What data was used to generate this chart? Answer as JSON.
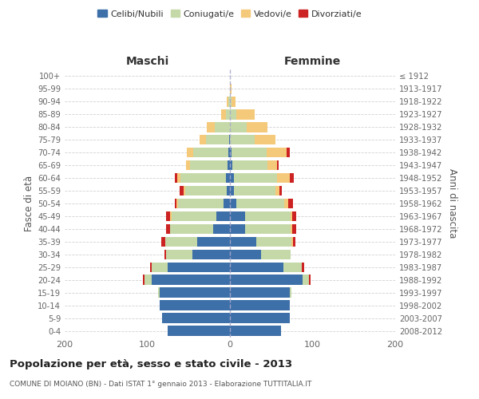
{
  "age_groups": [
    "0-4",
    "5-9",
    "10-14",
    "15-19",
    "20-24",
    "25-29",
    "30-34",
    "35-39",
    "40-44",
    "45-49",
    "50-54",
    "55-59",
    "60-64",
    "65-69",
    "70-74",
    "75-79",
    "80-84",
    "85-89",
    "90-94",
    "95-99",
    "100+"
  ],
  "birth_years": [
    "2008-2012",
    "2003-2007",
    "1998-2002",
    "1993-1997",
    "1988-1992",
    "1983-1987",
    "1978-1982",
    "1973-1977",
    "1968-1972",
    "1963-1967",
    "1958-1962",
    "1953-1957",
    "1948-1952",
    "1943-1947",
    "1938-1942",
    "1933-1937",
    "1928-1932",
    "1923-1927",
    "1918-1922",
    "1913-1917",
    "≤ 1912"
  ],
  "male": {
    "celibi": [
      75,
      82,
      85,
      85,
      95,
      75,
      45,
      40,
      20,
      16,
      8,
      4,
      5,
      3,
      2,
      1,
      0,
      0,
      0,
      0,
      0
    ],
    "coniugati": [
      0,
      0,
      0,
      2,
      8,
      20,
      32,
      38,
      52,
      55,
      55,
      50,
      55,
      45,
      42,
      28,
      18,
      5,
      2,
      0,
      0
    ],
    "vedovi": [
      0,
      0,
      0,
      0,
      0,
      0,
      0,
      0,
      0,
      1,
      2,
      2,
      4,
      5,
      8,
      8,
      10,
      6,
      2,
      0,
      0
    ],
    "divorziati": [
      0,
      0,
      0,
      0,
      2,
      2,
      2,
      5,
      5,
      5,
      2,
      5,
      3,
      0,
      0,
      0,
      0,
      0,
      0,
      0,
      0
    ]
  },
  "female": {
    "nubili": [
      62,
      72,
      72,
      72,
      88,
      65,
      38,
      32,
      18,
      18,
      8,
      5,
      5,
      3,
      2,
      0,
      0,
      0,
      0,
      0,
      0
    ],
    "coniugate": [
      0,
      0,
      0,
      2,
      8,
      22,
      35,
      42,
      55,
      55,
      58,
      50,
      52,
      42,
      42,
      30,
      20,
      8,
      2,
      0,
      0
    ],
    "vedove": [
      0,
      0,
      0,
      0,
      0,
      0,
      0,
      2,
      2,
      2,
      5,
      5,
      15,
      12,
      25,
      25,
      25,
      22,
      5,
      2,
      0
    ],
    "divorziate": [
      0,
      0,
      0,
      0,
      2,
      3,
      0,
      3,
      5,
      5,
      5,
      3,
      5,
      2,
      3,
      0,
      0,
      0,
      0,
      0,
      0
    ]
  },
  "colors": {
    "celibi": "#3d6fa8",
    "coniugati": "#c5d9a8",
    "vedovi": "#f5c97a",
    "divorziati": "#cc2222"
  },
  "xlim": 200,
  "title": "Popolazione per età, sesso e stato civile - 2013",
  "subtitle": "COMUNE DI MOIANO (BN) - Dati ISTAT 1° gennaio 2013 - Elaborazione TUTTITALIA.IT",
  "ylabel_left": "Fasce di età",
  "ylabel_right": "Anni di nascita",
  "xlabel_maschi": "Maschi",
  "xlabel_femmine": "Femmine",
  "legend_labels": [
    "Celibi/Nubili",
    "Coniugati/e",
    "Vedovi/e",
    "Divorziati/e"
  ],
  "bg_color": "#ffffff",
  "grid_color": "#cccccc"
}
